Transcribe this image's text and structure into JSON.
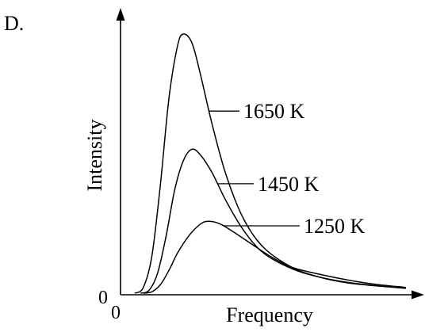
{
  "option_label": "D.",
  "chart_data": {
    "type": "line",
    "title": "",
    "xlabel": "Frequency",
    "ylabel": "Intensity",
    "x_origin_label": "0",
    "y_origin_label": "0",
    "x_ticks": false,
    "y_ticks": false,
    "grid": false,
    "legend": "inline labels",
    "series": [
      {
        "name": "1650 K",
        "peak_height": 0.9,
        "peak_position": 0.22,
        "points": [
          [
            0.05,
            0
          ],
          [
            0.08,
            0.02
          ],
          [
            0.11,
            0.13
          ],
          [
            0.14,
            0.38
          ],
          [
            0.17,
            0.68
          ],
          [
            0.2,
            0.86
          ],
          [
            0.22,
            0.9
          ],
          [
            0.25,
            0.87
          ],
          [
            0.28,
            0.76
          ],
          [
            0.32,
            0.59
          ],
          [
            0.37,
            0.41
          ],
          [
            0.43,
            0.26
          ],
          [
            0.5,
            0.16
          ],
          [
            0.6,
            0.09
          ],
          [
            0.7,
            0.055
          ],
          [
            0.8,
            0.035
          ],
          [
            0.9,
            0.025
          ],
          [
            1.0,
            0.017
          ]
        ]
      },
      {
        "name": "1450 K",
        "peak_height": 0.5,
        "peak_position": 0.26,
        "points": [
          [
            0.07,
            0
          ],
          [
            0.1,
            0.01
          ],
          [
            0.13,
            0.07
          ],
          [
            0.16,
            0.2
          ],
          [
            0.19,
            0.36
          ],
          [
            0.22,
            0.46
          ],
          [
            0.25,
            0.5
          ],
          [
            0.28,
            0.48
          ],
          [
            0.32,
            0.42
          ],
          [
            0.37,
            0.32
          ],
          [
            0.43,
            0.22
          ],
          [
            0.5,
            0.14
          ],
          [
            0.6,
            0.085
          ],
          [
            0.7,
            0.055
          ],
          [
            0.8,
            0.037
          ],
          [
            0.9,
            0.026
          ],
          [
            1.0,
            0.017
          ]
        ]
      },
      {
        "name": "1250 K",
        "peak_height": 0.25,
        "peak_position": 0.31,
        "points": [
          [
            0.08,
            0
          ],
          [
            0.11,
            0.005
          ],
          [
            0.14,
            0.03
          ],
          [
            0.17,
            0.08
          ],
          [
            0.2,
            0.14
          ],
          [
            0.24,
            0.2
          ],
          [
            0.28,
            0.24
          ],
          [
            0.31,
            0.25
          ],
          [
            0.35,
            0.24
          ],
          [
            0.4,
            0.21
          ],
          [
            0.46,
            0.17
          ],
          [
            0.53,
            0.125
          ],
          [
            0.6,
            0.09
          ],
          [
            0.7,
            0.065
          ],
          [
            0.8,
            0.045
          ],
          [
            0.9,
            0.03
          ],
          [
            1.0,
            0.02
          ]
        ]
      }
    ]
  }
}
